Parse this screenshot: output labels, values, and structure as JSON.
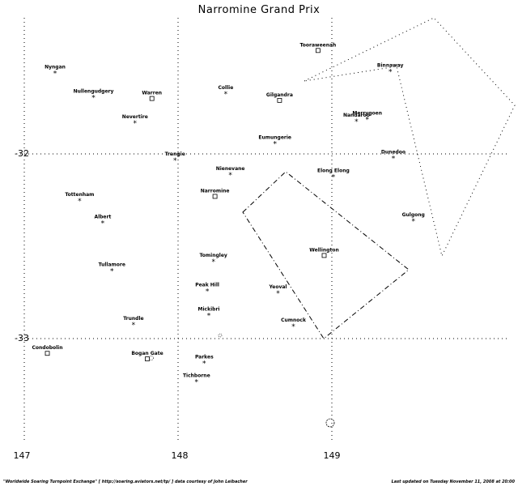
{
  "title": "Narromine Grand Prix",
  "axes": {
    "x_ticks": [
      "147",
      "148",
      "149"
    ],
    "y_ticks": [
      "-32",
      "-33"
    ]
  },
  "towns": [
    {
      "name": "Nyngan",
      "lon": 147.2,
      "lat": -31.56,
      "marker": "star"
    },
    {
      "name": "Nullengudgery",
      "lon": 147.45,
      "lat": -31.69,
      "marker": "star"
    },
    {
      "name": "Warren",
      "lon": 147.83,
      "lat": -31.7,
      "marker": "square"
    },
    {
      "name": "Nevertire",
      "lon": 147.72,
      "lat": -31.83,
      "marker": "star"
    },
    {
      "name": "Collie",
      "lon": 148.31,
      "lat": -31.67,
      "marker": "star"
    },
    {
      "name": "Gilgandra",
      "lon": 148.66,
      "lat": -31.71,
      "marker": "square"
    },
    {
      "name": "Tooraweenah",
      "lon": 148.91,
      "lat": -31.44,
      "marker": "square"
    },
    {
      "name": "Binnaway",
      "lon": 149.38,
      "lat": -31.55,
      "marker": "star"
    },
    {
      "name": "Nandaroo",
      "lon": 149.16,
      "lat": -31.82,
      "marker": "star"
    },
    {
      "name": "Merrygoen",
      "lon": 149.23,
      "lat": -31.81,
      "marker": "star"
    },
    {
      "name": "Eumungerie",
      "lon": 148.63,
      "lat": -31.94,
      "marker": "star"
    },
    {
      "name": "Dunedoo",
      "lon": 149.4,
      "lat": -32.02,
      "marker": "star"
    },
    {
      "name": "Trangie",
      "lon": 147.98,
      "lat": -32.03,
      "marker": "star"
    },
    {
      "name": "Nienevane",
      "lon": 148.34,
      "lat": -32.11,
      "marker": "star"
    },
    {
      "name": "Elong Elong",
      "lon": 149.01,
      "lat": -32.12,
      "marker": "star"
    },
    {
      "name": "Narromine",
      "lon": 148.24,
      "lat": -32.23,
      "marker": "square"
    },
    {
      "name": "Tottenham",
      "lon": 147.36,
      "lat": -32.25,
      "marker": "star"
    },
    {
      "name": "Albert",
      "lon": 147.51,
      "lat": -32.37,
      "marker": "star"
    },
    {
      "name": "Gulgong",
      "lon": 149.53,
      "lat": -32.36,
      "marker": "star"
    },
    {
      "name": "Wellington",
      "lon": 148.95,
      "lat": -32.55,
      "marker": "square"
    },
    {
      "name": "Tomingley",
      "lon": 148.23,
      "lat": -32.58,
      "marker": "star"
    },
    {
      "name": "Tullamore",
      "lon": 147.57,
      "lat": -32.63,
      "marker": "star"
    },
    {
      "name": "Peak Hill",
      "lon": 148.19,
      "lat": -32.74,
      "marker": "star"
    },
    {
      "name": "Yeoval",
      "lon": 148.65,
      "lat": -32.75,
      "marker": "star"
    },
    {
      "name": "Mickibri",
      "lon": 148.2,
      "lat": -32.87,
      "marker": "star"
    },
    {
      "name": "Cumnock",
      "lon": 148.75,
      "lat": -32.93,
      "marker": "star"
    },
    {
      "name": "Trundle",
      "lon": 147.71,
      "lat": -32.92,
      "marker": "star"
    },
    {
      "name": "Condobolin",
      "lon": 147.15,
      "lat": -33.08,
      "marker": "square"
    },
    {
      "name": "Tichborne",
      "lon": 148.12,
      "lat": -33.23,
      "marker": "star"
    },
    {
      "name": "Bogan Gate",
      "lon": 147.8,
      "lat": -33.11,
      "marker": "square"
    },
    {
      "name": "Parkes",
      "lon": 148.17,
      "lat": -33.13,
      "marker": "star"
    }
  ],
  "footer": {
    "left": "\"Worldwide Soaring Turnpoint Exchange\" [ http://soaring.aviators.net/tp/ ] data courtesy of John Leibacher",
    "right": "Last updated on Tuesday November 11, 2008 at 20:00"
  }
}
